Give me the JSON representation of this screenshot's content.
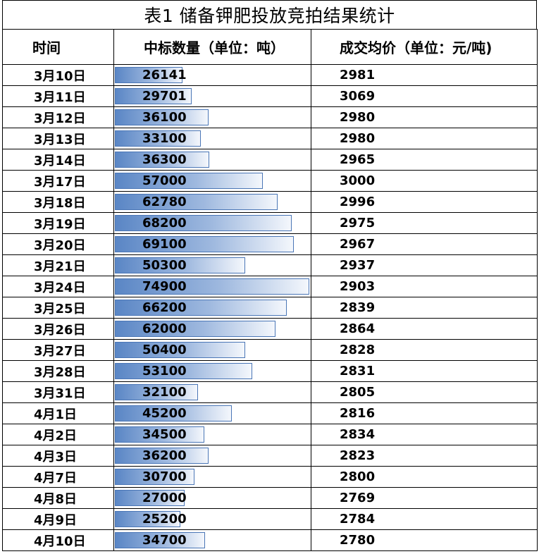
{
  "title": "表1 储备钾肥投放竞拍结果统计",
  "headers": {
    "date": "时间",
    "amount": "中标数量（单位：吨）",
    "price": "成交均价（单位：元/吨)"
  },
  "bar_max": 75000,
  "rows": [
    {
      "date": "3月10日",
      "amount": "26141",
      "price": "2981"
    },
    {
      "date": "3月11日",
      "amount": "29701",
      "price": "3069"
    },
    {
      "date": "3月12日",
      "amount": "36100",
      "price": "2980"
    },
    {
      "date": "3月13日",
      "amount": "33100",
      "price": "2980"
    },
    {
      "date": "3月14日",
      "amount": "36300",
      "price": "2965"
    },
    {
      "date": "3月17日",
      "amount": "57000",
      "price": "3000"
    },
    {
      "date": "3月18日",
      "amount": "62780",
      "price": "2996"
    },
    {
      "date": "3月19日",
      "amount": "68200",
      "price": "2975"
    },
    {
      "date": "3月20日",
      "amount": "69100",
      "price": "2967"
    },
    {
      "date": "3月21日",
      "amount": "50300",
      "price": "2937"
    },
    {
      "date": "3月24日",
      "amount": "74900",
      "price": "2903"
    },
    {
      "date": "3月25日",
      "amount": "66200",
      "price": "2839"
    },
    {
      "date": "3月26日",
      "amount": "62000",
      "price": "2864"
    },
    {
      "date": "3月27日",
      "amount": "50400",
      "price": "2828"
    },
    {
      "date": "3月28日",
      "amount": "53100",
      "price": "2831"
    },
    {
      "date": "3月31日",
      "amount": "32100",
      "price": "2805"
    },
    {
      "date": "4月1日",
      "amount": "45200",
      "price": "2816"
    },
    {
      "date": "4月2日",
      "amount": "34500",
      "price": "2834"
    },
    {
      "date": "4月3日",
      "amount": "36200",
      "price": "2823"
    },
    {
      "date": "4月7日",
      "amount": "30700",
      "price": "2800"
    },
    {
      "date": "4月8日",
      "amount": "27000",
      "price": "2769"
    },
    {
      "date": "4月9日",
      "amount": "25200",
      "price": "2784"
    },
    {
      "date": "4月10日",
      "amount": "34700",
      "price": "2780"
    }
  ],
  "colors": {
    "bar_start": "#5a86c5",
    "bar_end": "#f4f7fc",
    "bar_border": "#4a76b6"
  }
}
